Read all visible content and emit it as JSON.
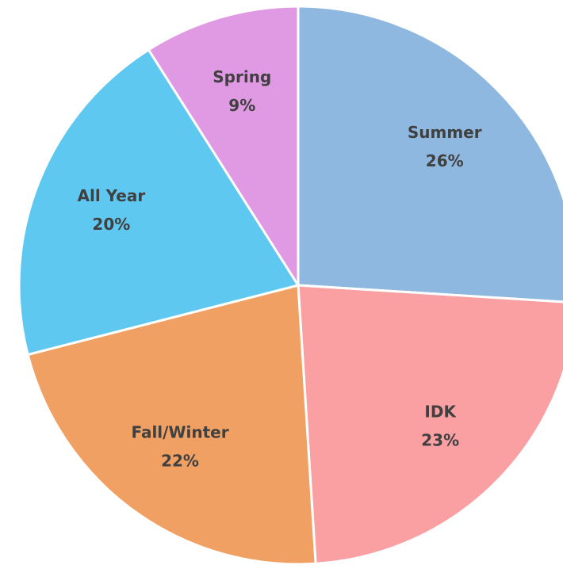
{
  "chart_data": {
    "type": "pie",
    "categories": [
      "Summer",
      "IDK",
      "Fall/Winter",
      "All Year",
      "Spring"
    ],
    "values": [
      26,
      23,
      22,
      20,
      9
    ],
    "value_labels": [
      "26%",
      "23%",
      "22%",
      "20%",
      "9%"
    ],
    "colors": [
      "#8fb8e0",
      "#fa9fa2",
      "#f0a062",
      "#5ec8f0",
      "#e09ae3"
    ]
  }
}
